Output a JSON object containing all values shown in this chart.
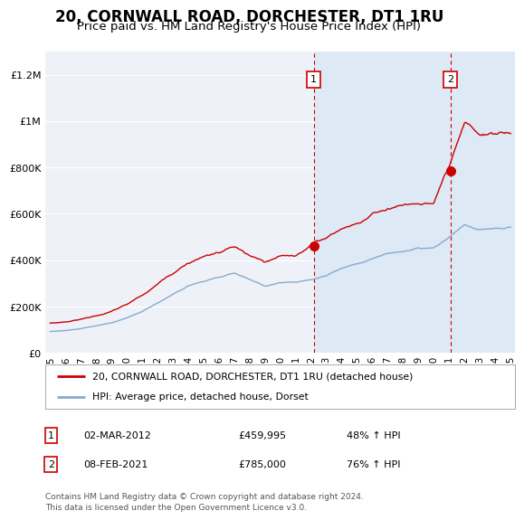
{
  "title": "20, CORNWALL ROAD, DORCHESTER, DT1 1RU",
  "subtitle": "Price paid vs. HM Land Registry's House Price Index (HPI)",
  "title_fontsize": 12,
  "subtitle_fontsize": 9.5,
  "background_color": "#ffffff",
  "plot_bg_color": "#eef2f8",
  "grid_color": "#ffffff",
  "ylim": [
    0,
    1300000
  ],
  "yticks": [
    0,
    200000,
    400000,
    600000,
    800000,
    1000000,
    1200000
  ],
  "ytick_labels": [
    "£0",
    "£200K",
    "£400K",
    "£600K",
    "£800K",
    "£1M",
    "£1.2M"
  ],
  "sale1_year": 2012.17,
  "sale1_y": 460000,
  "sale1_label": "1",
  "sale2_year": 2021.08,
  "sale2_y": 785000,
  "sale2_label": "2",
  "legend_line1": "20, CORNWALL ROAD, DORCHESTER, DT1 1RU (detached house)",
  "legend_line2": "HPI: Average price, detached house, Dorset",
  "ann1_date": "02-MAR-2012",
  "ann1_price": "£459,995",
  "ann1_hpi": "48% ↑ HPI",
  "ann2_date": "08-FEB-2021",
  "ann2_price": "£785,000",
  "ann2_hpi": "76% ↑ HPI",
  "footer": "Contains HM Land Registry data © Crown copyright and database right 2024.\nThis data is licensed under the Open Government Licence v3.0.",
  "red_line_color": "#cc0000",
  "blue_line_color": "#88aacc",
  "shade_color": "#dbe8f5",
  "xlim_left": 1994.7,
  "xlim_right": 2025.3
}
